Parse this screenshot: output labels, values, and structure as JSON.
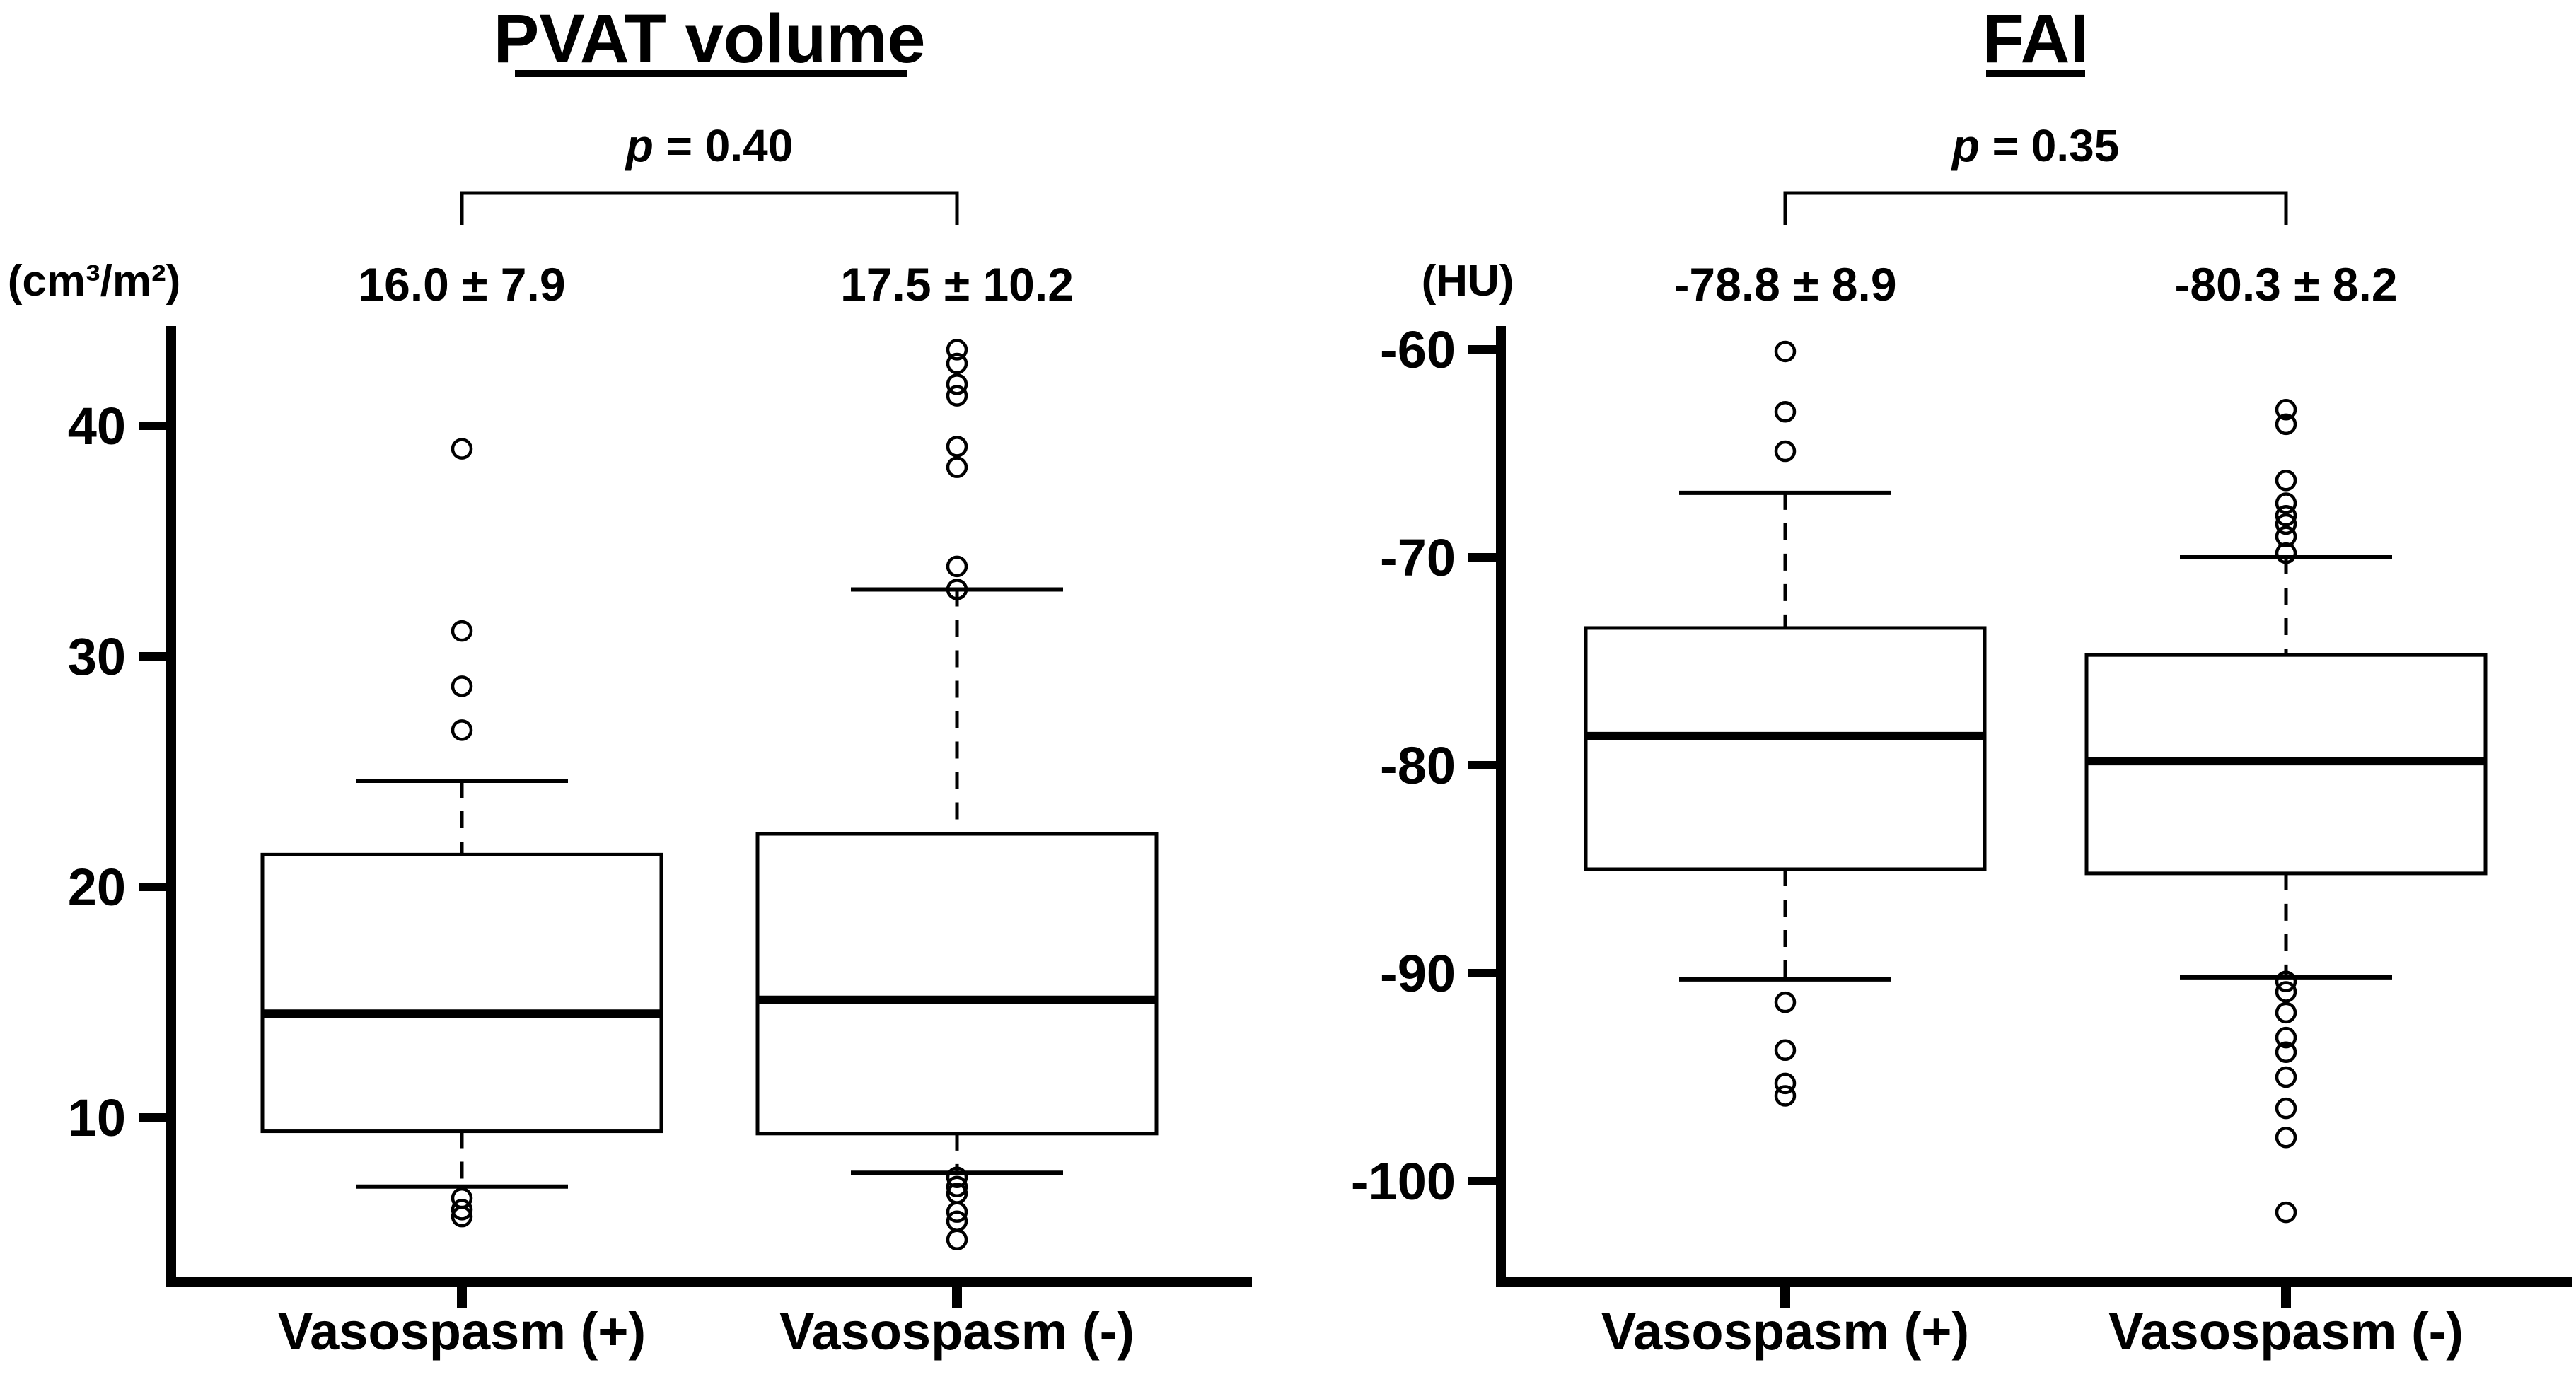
{
  "figure": {
    "background": "#ffffff",
    "ink_color": "#000000"
  },
  "chart_data": [
    {
      "type": "box",
      "title": "PVAT volume",
      "unit": "(cm³/m²)",
      "p": {
        "symbol": "p",
        "rest": " = 0.40"
      },
      "categories": [
        "Vasospasm (+)",
        "Vasospasm (-)"
      ],
      "means": [
        "16.0 ± 7.9",
        "17.5 ± 10.2"
      ],
      "yticks": [
        40,
        30,
        20,
        10
      ],
      "ylim": [
        2.9,
        44.9
      ],
      "grid": false,
      "boxes": [
        {
          "category": "Vasospasm (+)",
          "whisker_low": 7.0,
          "q1": 9.4,
          "median": 14.5,
          "q3": 21.4,
          "whisker_high": 24.6,
          "outliers_above": [
            39.0,
            31.1,
            28.7,
            26.8
          ],
          "outliers_below": [
            6.5,
            6.0,
            5.7
          ]
        },
        {
          "category": "Vasospasm (-)",
          "whisker_low": 7.6,
          "q1": 9.3,
          "median": 15.1,
          "q3": 22.3,
          "whisker_high": 32.9,
          "outliers_above": [
            43.3,
            42.7,
            41.8,
            41.3,
            39.1,
            38.2,
            33.9,
            32.9
          ],
          "outliers_below": [
            7.4,
            7.0,
            6.7,
            5.9,
            5.5,
            4.7
          ]
        }
      ]
    },
    {
      "type": "box",
      "title": "FAI",
      "unit": "(HU)",
      "p": {
        "symbol": "p",
        "rest": " = 0.35"
      },
      "categories": [
        "Vasospasm (+)",
        "Vasospasm (-)"
      ],
      "means": [
        "-78.8 ± 8.9",
        "-80.3 ± 8.2"
      ],
      "yticks": [
        -60,
        -70,
        -80,
        -90,
        -100
      ],
      "ylim": [
        -104.8,
        -58.9
      ],
      "grid": false,
      "boxes": [
        {
          "category": "Vasospasm (+)",
          "whisker_low": -90.3,
          "q1": -85.0,
          "median": -78.6,
          "q3": -73.4,
          "whisker_high": -66.9,
          "outliers_above": [
            -60.1,
            -63.0,
            -64.9
          ],
          "outliers_below": [
            -91.4,
            -93.7,
            -95.3,
            -95.9
          ]
        },
        {
          "category": "Vasospasm (-)",
          "whisker_low": -90.2,
          "q1": -85.2,
          "median": -79.8,
          "q3": -74.7,
          "whisker_high": -70.0,
          "outliers_above": [
            -62.9,
            -63.6,
            -66.3,
            -67.4,
            -68.0,
            -68.4,
            -69.0,
            -69.8
          ],
          "outliers_below": [
            -90.4,
            -90.9,
            -91.9,
            -93.1,
            -93.8,
            -95.0,
            -96.5,
            -97.9,
            -101.5
          ]
        }
      ]
    }
  ]
}
